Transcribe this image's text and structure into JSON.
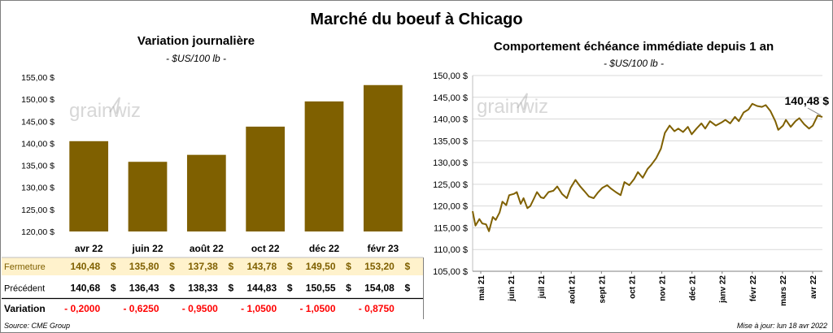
{
  "page": {
    "title": "Marché du boeuf à Chicago",
    "source": "Source: CME Group",
    "update": "Mise à jour: lun 18 avr 2022",
    "watermark": "grainwiz"
  },
  "colors": {
    "bar": "#7f6000",
    "line": "#7f6000",
    "highlight_row": "#fff2cc",
    "negative": "#ff0000",
    "grid": "#d9d9d9",
    "watermark": "#a6a6a6"
  },
  "chart_data": [
    {
      "type": "bar",
      "title": "Variation  journalière",
      "subtitle": "- $US/100 lb -",
      "categories": [
        "avr 22",
        "juin 22",
        "août 22",
        "oct 22",
        "déc 22",
        "févr 23"
      ],
      "values": [
        140.48,
        135.8,
        137.38,
        143.78,
        149.5,
        153.2
      ],
      "ylim": [
        120,
        155
      ],
      "yticks": [
        120,
        125,
        130,
        135,
        140,
        145,
        150,
        155
      ],
      "ytick_labels": [
        "120,00 $",
        "125,00 $",
        "130,00 $",
        "135,00 $",
        "140,00 $",
        "145,00 $",
        "150,00 $",
        "155,00 $"
      ],
      "grid": false,
      "table": [
        {
          "label": "Fermeture",
          "values": [
            "140,48",
            "135,80",
            "137,38",
            "143,78",
            "149,50",
            "153,20"
          ],
          "suffix": "$"
        },
        {
          "label": "Précédent",
          "values": [
            "140,68",
            "136,43",
            "138,33",
            "144,83",
            "150,55",
            "154,08"
          ],
          "suffix": "$"
        },
        {
          "label": "Variation",
          "values": [
            "- 0,2000",
            "- 0,6250",
            "- 0,9500",
            "- 1,0500",
            "- 1,0500",
            "- 0,8750"
          ],
          "suffix": ""
        }
      ]
    },
    {
      "type": "line",
      "title": "Comportement  échéance immédiate depuis 1 an",
      "subtitle": "- $US/100 lb -",
      "xlabel": "",
      "ylabel": "",
      "x_ticks": [
        "mai 21",
        "juin 21",
        "juil 21",
        "août 21",
        "sept 21",
        "oct 21",
        "nov 21",
        "déc 21",
        "janv 22",
        "févr 22",
        "mars 22",
        "avr 22"
      ],
      "x_range": [
        "2021-04-19",
        "2022-04-18"
      ],
      "ylim": [
        105,
        150
      ],
      "yticks": [
        105,
        110,
        115,
        120,
        125,
        130,
        135,
        140,
        145,
        150
      ],
      "ytick_labels": [
        "105,00 $",
        "110,00 $",
        "115,00 $",
        "120,00 $",
        "125,00 $",
        "130,00 $",
        "135,00 $",
        "140,00 $",
        "145,00 $",
        "150,00 $"
      ],
      "grid": true,
      "last_label": "140,48 $",
      "series": [
        {
          "x": [
            "2021-04-19",
            "2021-04-22",
            "2021-04-26",
            "2021-04-29",
            "2021-05-03",
            "2021-05-06",
            "2021-05-10",
            "2021-05-13",
            "2021-05-17",
            "2021-05-20",
            "2021-05-24",
            "2021-05-27",
            "2021-06-01",
            "2021-06-04",
            "2021-06-08",
            "2021-06-11",
            "2021-06-15",
            "2021-06-18",
            "2021-06-22",
            "2021-06-25",
            "2021-06-29",
            "2021-07-02",
            "2021-07-07",
            "2021-07-12",
            "2021-07-16",
            "2021-07-21",
            "2021-07-26",
            "2021-07-30",
            "2021-08-04",
            "2021-08-09",
            "2021-08-13",
            "2021-08-18",
            "2021-08-23",
            "2021-08-27",
            "2021-09-01",
            "2021-09-06",
            "2021-09-10",
            "2021-09-15",
            "2021-09-20",
            "2021-09-24",
            "2021-09-29",
            "2021-10-04",
            "2021-10-08",
            "2021-10-13",
            "2021-10-18",
            "2021-10-22",
            "2021-10-27",
            "2021-11-01",
            "2021-11-05",
            "2021-11-10",
            "2021-11-15",
            "2021-11-19",
            "2021-11-24",
            "2021-11-29",
            "2021-12-03",
            "2021-12-08",
            "2021-12-13",
            "2021-12-17",
            "2021-12-22",
            "2021-12-28",
            "2022-01-03",
            "2022-01-07",
            "2022-01-12",
            "2022-01-17",
            "2022-01-21",
            "2022-01-26",
            "2022-01-31",
            "2022-02-04",
            "2022-02-09",
            "2022-02-14",
            "2022-02-18",
            "2022-02-23",
            "2022-02-28",
            "2022-03-03",
            "2022-03-08",
            "2022-03-11",
            "2022-03-16",
            "2022-03-21",
            "2022-03-25",
            "2022-03-30",
            "2022-04-04",
            "2022-04-08",
            "2022-04-13",
            "2022-04-18"
          ],
          "y": [
            118.8,
            115.5,
            117.0,
            116.0,
            115.8,
            114.2,
            117.5,
            116.8,
            118.5,
            121.0,
            120.2,
            122.5,
            122.8,
            123.2,
            120.5,
            121.8,
            119.5,
            120.0,
            121.8,
            123.2,
            122.0,
            121.8,
            123.2,
            123.5,
            124.5,
            122.8,
            121.8,
            124.2,
            126.0,
            124.5,
            123.5,
            122.2,
            121.8,
            123.0,
            124.2,
            124.8,
            124.0,
            123.2,
            122.5,
            125.5,
            124.8,
            126.2,
            127.8,
            126.5,
            128.5,
            129.5,
            131.0,
            133.2,
            136.8,
            138.5,
            137.2,
            137.8,
            137.0,
            138.2,
            136.5,
            137.8,
            139.0,
            137.8,
            139.5,
            138.5,
            139.2,
            139.8,
            139.0,
            140.5,
            139.5,
            141.5,
            142.2,
            143.5,
            143.0,
            142.8,
            143.2,
            141.8,
            139.5,
            137.5,
            138.5,
            139.8,
            138.2,
            139.5,
            140.2,
            138.8,
            137.8,
            138.5,
            140.8,
            140.48
          ]
        }
      ]
    }
  ]
}
